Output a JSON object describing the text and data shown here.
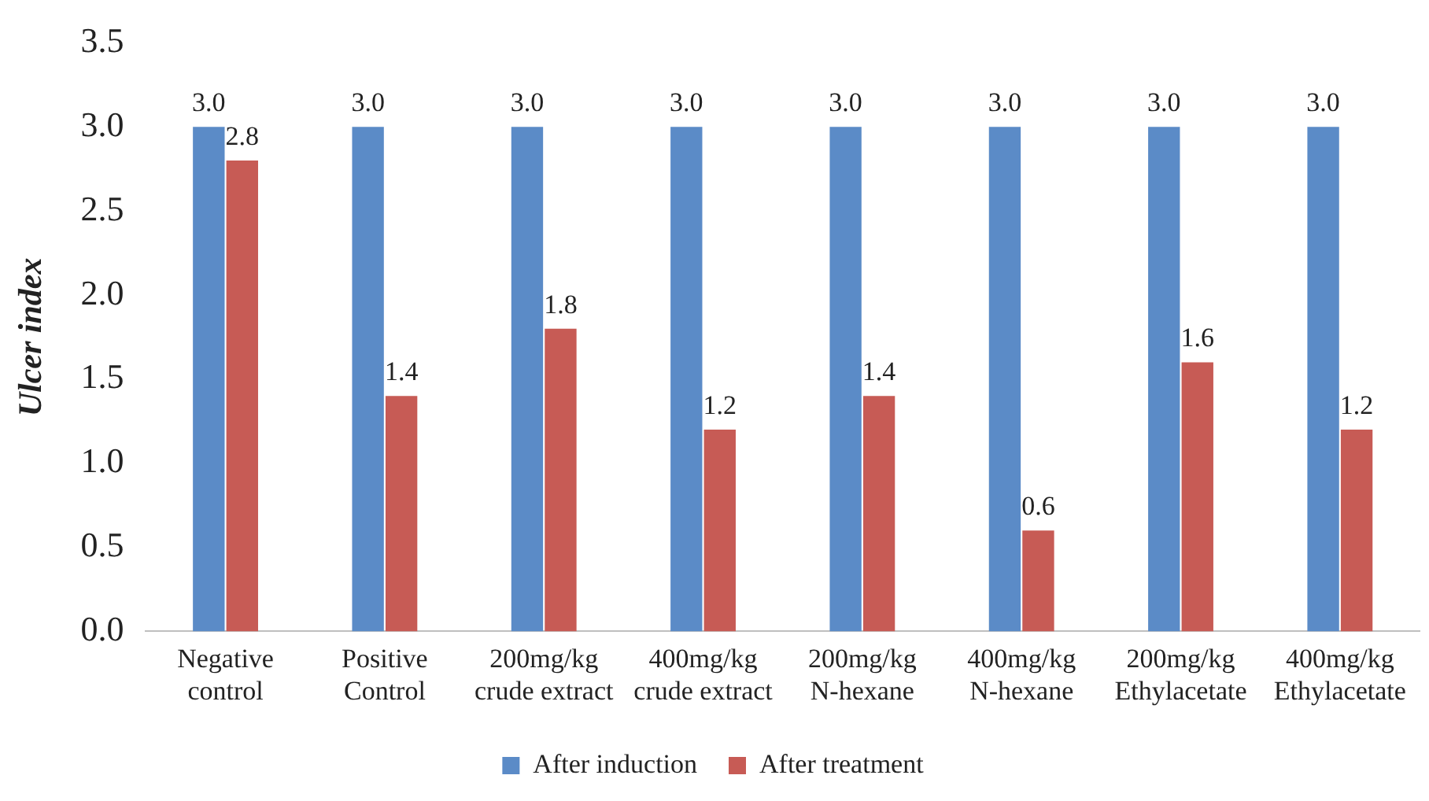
{
  "chart_data": {
    "type": "bar",
    "ylabel": "Ulcer index",
    "categories": [
      "Negative\ncontrol",
      "Positive\nControl",
      "200mg/kg\ncrude extract",
      "400mg/kg\ncrude extract",
      "200mg/kg\nN-hexane",
      "400mg/kg\nN-hexane",
      "200mg/kg\nEthylacetate",
      "400mg/kg\nEthylacetate"
    ],
    "series": [
      {
        "name": "After induction",
        "color": "#5b8bc7",
        "values": [
          3.0,
          3.0,
          3.0,
          3.0,
          3.0,
          3.0,
          3.0,
          3.0
        ],
        "value_labels": [
          "3.0",
          "3.0",
          "3.0",
          "3.0",
          "3.0",
          "3.0",
          "3.0",
          "3.0"
        ]
      },
      {
        "name": "After treatment",
        "color": "#c75b55",
        "values": [
          2.8,
          1.4,
          1.8,
          1.2,
          1.4,
          0.6,
          1.6,
          1.2
        ],
        "value_labels": [
          "2.8",
          "1.4",
          "1.8",
          "1.2",
          "1.4",
          "0.6",
          "1.6",
          "1.2"
        ]
      }
    ],
    "ylim": [
      0,
      3.5
    ],
    "yticks": [
      {
        "value": 0,
        "label": "0.0"
      },
      {
        "value": 0.5,
        "label": "0.5"
      },
      {
        "value": 1,
        "label": "1.0"
      },
      {
        "value": 1.5,
        "label": "1.5"
      },
      {
        "value": 2,
        "label": "2.0"
      },
      {
        "value": 2.5,
        "label": "2.5"
      },
      {
        "value": 3,
        "label": "3.0"
      },
      {
        "value": 3.5,
        "label": "3.5"
      }
    ],
    "grid": false,
    "legend": "bottom"
  }
}
